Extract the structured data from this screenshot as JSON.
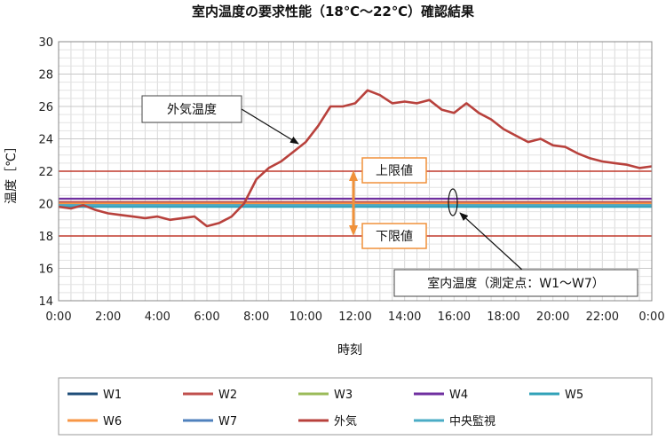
{
  "chart_data": {
    "type": "line",
    "title": "室内温度の要求性能（18℃〜22℃）確認結果",
    "xlabel": "時刻",
    "ylabel": "温度［℃］",
    "ylim": [
      14,
      30
    ],
    "yticks": [
      14,
      16,
      18,
      20,
      22,
      24,
      26,
      28,
      30
    ],
    "xticks": [
      "0:00",
      "2:00",
      "4:00",
      "6:00",
      "8:00",
      "10:00",
      "12:00",
      "14:00",
      "16:00",
      "18:00",
      "20:00",
      "22:00",
      "0:00"
    ],
    "xlim_hours": [
      0,
      24
    ],
    "grid": true,
    "legend_position": "bottom",
    "thresholds": [
      {
        "label": "上限値",
        "value": 22,
        "color": "#c0392b"
      },
      {
        "label": "下限値",
        "value": 18,
        "color": "#c0392b"
      }
    ],
    "annotations": {
      "outdoor": "外気温度",
      "indoor": "室内温度（測定点：W1〜W7）"
    },
    "series": [
      {
        "name": "W1",
        "color": "#1f4e79",
        "x": [
          0,
          24
        ],
        "y": [
          20.0,
          20.0
        ]
      },
      {
        "name": "W2",
        "color": "#c0504d",
        "x": [
          0,
          24
        ],
        "y": [
          20.1,
          20.1
        ]
      },
      {
        "name": "W3",
        "color": "#9bbb59",
        "x": [
          0,
          24
        ],
        "y": [
          19.9,
          19.9
        ]
      },
      {
        "name": "W4",
        "color": "#7030a0",
        "x": [
          0,
          24
        ],
        "y": [
          20.3,
          20.3
        ]
      },
      {
        "name": "W5",
        "color": "#31a2b8",
        "x": [
          0,
          24
        ],
        "y": [
          19.8,
          19.8
        ]
      },
      {
        "name": "W6",
        "color": "#f79646",
        "x": [
          0,
          24
        ],
        "y": [
          20.0,
          20.0
        ]
      },
      {
        "name": "W7",
        "color": "#4f81bd",
        "x": [
          0,
          24
        ],
        "y": [
          19.9,
          19.9
        ]
      },
      {
        "name": "外気",
        "color": "#b8413c",
        "x": [
          0,
          0.5,
          1,
          1.5,
          2,
          2.5,
          3,
          3.5,
          4,
          4.5,
          5,
          5.5,
          6,
          6.5,
          7,
          7.5,
          8,
          8.5,
          9,
          9.5,
          10,
          10.5,
          11,
          11.5,
          12,
          12.5,
          13,
          13.5,
          14,
          14.5,
          15,
          15.5,
          16,
          16.5,
          17,
          17.5,
          18,
          18.5,
          19,
          19.5,
          20,
          20.5,
          21,
          21.5,
          22,
          22.5,
          23,
          23.5,
          24
        ],
        "y": [
          19.8,
          19.7,
          19.9,
          19.6,
          19.4,
          19.3,
          19.2,
          19.1,
          19.2,
          19.0,
          19.1,
          19.2,
          18.6,
          18.8,
          19.2,
          20.0,
          21.5,
          22.2,
          22.6,
          23.2,
          23.8,
          24.8,
          26.0,
          26.0,
          26.2,
          27.0,
          26.7,
          26.2,
          26.3,
          26.2,
          26.4,
          25.8,
          25.6,
          26.2,
          25.6,
          25.2,
          24.6,
          24.2,
          23.8,
          24.0,
          23.6,
          23.5,
          23.1,
          22.8,
          22.6,
          22.5,
          22.4,
          22.2,
          22.3
        ]
      },
      {
        "name": "中央監視",
        "color": "#4bacc6",
        "x": [
          0,
          24
        ],
        "y": [
          19.9,
          19.9
        ]
      }
    ]
  }
}
